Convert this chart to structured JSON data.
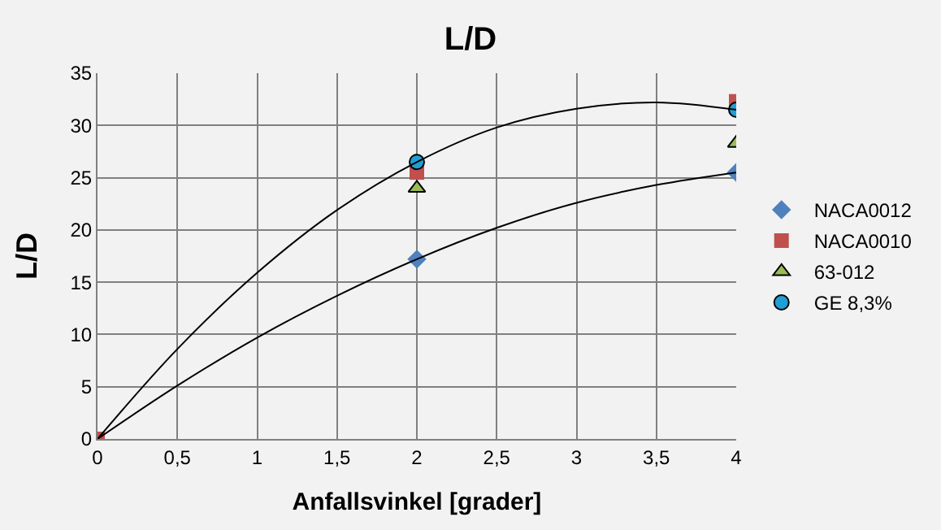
{
  "chart_data": {
    "type": "scatter",
    "title": "L/D",
    "xlabel": "Anfallsvinkel [grader]",
    "ylabel": "L/D",
    "x": [
      0,
      2,
      4
    ],
    "series": [
      {
        "name": "NACA0012",
        "color": "#4f81bd",
        "marker": "diamond",
        "values": [
          null,
          17.2,
          25.5
        ]
      },
      {
        "name": "NACA0010",
        "color": "#c0504d",
        "marker": "square",
        "values": [
          0,
          25.5,
          32.3
        ]
      },
      {
        "name": "63-012",
        "color": "#9bbb59",
        "marker": "triangle",
        "values": [
          null,
          24,
          28.3
        ]
      },
      {
        "name": "GE 8,3%",
        "color": "#1f9fd5",
        "marker": "circle",
        "values": [
          null,
          26.5,
          31.5
        ]
      },
      {
        "type": "line",
        "color": "#000000",
        "x": [
          0,
          0.5,
          1,
          1.5,
          2,
          2.5,
          3,
          3.5,
          4
        ],
        "values": [
          0,
          8.6,
          15.9,
          21.9,
          26.5,
          29.8,
          31.6,
          32.2,
          31.5
        ]
      },
      {
        "type": "line",
        "color": "#000000",
        "x": [
          0,
          0.5,
          1,
          1.5,
          2,
          2.5,
          3,
          3.5,
          4
        ],
        "values": [
          0,
          5.1,
          9.7,
          13.7,
          17.2,
          20.2,
          22.6,
          24.3,
          25.5
        ]
      }
    ],
    "xlim": [
      0,
      4
    ],
    "xticks": [
      0,
      {
        "value": 0.5,
        "label": "0,5"
      },
      1,
      {
        "value": 1.5,
        "label": "1,5"
      },
      2,
      {
        "value": 2.5,
        "label": "2,5"
      },
      3,
      {
        "value": 3.5,
        "label": "3,5"
      },
      4
    ],
    "ylim": [
      0,
      35
    ],
    "yticks": [
      0,
      5,
      10,
      15,
      20,
      25,
      30,
      35
    ],
    "grid": true,
    "legend": "right"
  }
}
